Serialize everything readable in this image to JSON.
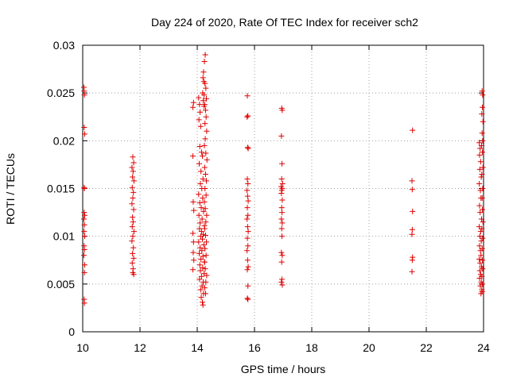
{
  "chart_data": {
    "type": "scatter",
    "title": "Day 224 of 2020, Rate Of TEC Index for receiver sch2",
    "xlabel": "GPS time / hours",
    "ylabel": "ROTI / TECUs",
    "xlim": [
      10,
      24
    ],
    "ylim": [
      0,
      0.03
    ],
    "x_ticks": [
      "10",
      "12",
      "14",
      "16",
      "18",
      "20",
      "22",
      "24"
    ],
    "y_ticks": [
      "0",
      "0.005",
      "0.01",
      "0.015",
      "0.02",
      "0.025",
      "0.03"
    ],
    "grid": true,
    "marker": "+",
    "marker_color": "#e00000",
    "series": [
      {
        "points": [
          [
            10.05,
            0.0252
          ],
          [
            10.06,
            0.0248
          ],
          [
            10.04,
            0.0256
          ],
          [
            10.05,
            0.0214
          ],
          [
            10.07,
            0.0207
          ],
          [
            10.05,
            0.0151
          ],
          [
            10.06,
            0.015
          ],
          [
            10.05,
            0.0125
          ],
          [
            10.07,
            0.0122
          ],
          [
            10.04,
            0.0118
          ],
          [
            10.06,
            0.0112
          ],
          [
            10.05,
            0.0105
          ],
          [
            10.07,
            0.01
          ],
          [
            10.05,
            0.009
          ],
          [
            10.06,
            0.0086
          ],
          [
            10.04,
            0.008
          ],
          [
            10.07,
            0.007
          ],
          [
            10.06,
            0.0062
          ],
          [
            10.05,
            0.0034
          ],
          [
            10.06,
            0.003
          ],
          [
            11.75,
            0.0183
          ],
          [
            11.78,
            0.0177
          ],
          [
            11.72,
            0.0172
          ],
          [
            11.76,
            0.0168
          ],
          [
            11.74,
            0.0162
          ],
          [
            11.79,
            0.0158
          ],
          [
            11.73,
            0.0151
          ],
          [
            11.77,
            0.0146
          ],
          [
            11.75,
            0.014
          ],
          [
            11.72,
            0.0134
          ],
          [
            11.78,
            0.0128
          ],
          [
            11.74,
            0.012
          ],
          [
            11.76,
            0.0115
          ],
          [
            11.73,
            0.011
          ],
          [
            11.79,
            0.0105
          ],
          [
            11.75,
            0.01
          ],
          [
            11.72,
            0.0095
          ],
          [
            11.77,
            0.0088
          ],
          [
            11.74,
            0.0082
          ],
          [
            11.78,
            0.0077
          ],
          [
            11.73,
            0.0072
          ],
          [
            11.76,
            0.0066
          ],
          [
            11.75,
            0.0062
          ],
          [
            11.78,
            0.006
          ],
          [
            13.85,
            0.0235
          ],
          [
            13.87,
            0.024
          ],
          [
            13.85,
            0.0184
          ],
          [
            13.86,
            0.0136
          ],
          [
            13.88,
            0.0127
          ],
          [
            13.85,
            0.0103
          ],
          [
            13.87,
            0.0094
          ],
          [
            13.86,
            0.0083
          ],
          [
            13.88,
            0.0075
          ],
          [
            13.85,
            0.0065
          ],
          [
            14.05,
            0.0245
          ],
          [
            14.08,
            0.0238
          ],
          [
            14.1,
            0.023
          ],
          [
            14.06,
            0.0222
          ],
          [
            14.12,
            0.0215
          ],
          [
            14.09,
            0.0194
          ],
          [
            14.15,
            0.0188
          ],
          [
            14.18,
            0.0184
          ],
          [
            14.07,
            0.0176
          ],
          [
            14.13,
            0.0168
          ],
          [
            14.2,
            0.016
          ],
          [
            14.11,
            0.0155
          ],
          [
            14.16,
            0.015
          ],
          [
            14.05,
            0.0144
          ],
          [
            14.19,
            0.014
          ],
          [
            14.09,
            0.0135
          ],
          [
            14.14,
            0.013
          ],
          [
            14.22,
            0.0126
          ],
          [
            14.06,
            0.0122
          ],
          [
            14.17,
            0.0118
          ],
          [
            14.1,
            0.0114
          ],
          [
            14.25,
            0.0111
          ],
          [
            14.08,
            0.0108
          ],
          [
            14.15,
            0.0105
          ],
          [
            14.21,
            0.0102
          ],
          [
            14.12,
            0.01
          ],
          [
            14.18,
            0.0097
          ],
          [
            14.05,
            0.0094
          ],
          [
            14.23,
            0.0091
          ],
          [
            14.1,
            0.0088
          ],
          [
            14.16,
            0.0085
          ],
          [
            14.07,
            0.0082
          ],
          [
            14.2,
            0.0079
          ],
          [
            14.13,
            0.0076
          ],
          [
            14.26,
            0.0073
          ],
          [
            14.09,
            0.007
          ],
          [
            14.19,
            0.0067
          ],
          [
            14.11,
            0.0064
          ],
          [
            14.24,
            0.0061
          ],
          [
            14.15,
            0.0058
          ],
          [
            14.08,
            0.0055
          ],
          [
            14.21,
            0.0052
          ],
          [
            14.17,
            0.0048
          ],
          [
            14.12,
            0.0044
          ],
          [
            14.22,
            0.004
          ],
          [
            14.14,
            0.0036
          ],
          [
            14.18,
            0.0031
          ],
          [
            14.2,
            0.0028
          ],
          [
            14.25,
            0.0283
          ],
          [
            14.28,
            0.029
          ],
          [
            14.27,
            0.026
          ],
          [
            14.3,
            0.0255
          ],
          [
            14.24,
            0.0248
          ],
          [
            14.32,
            0.0244
          ],
          [
            14.26,
            0.0238
          ],
          [
            14.29,
            0.0232
          ],
          [
            14.31,
            0.0225
          ],
          [
            14.27,
            0.0218
          ],
          [
            14.33,
            0.021
          ],
          [
            14.28,
            0.0202
          ],
          [
            14.25,
            0.0195
          ],
          [
            14.3,
            0.0187
          ],
          [
            14.34,
            0.018
          ],
          [
            14.26,
            0.0172
          ],
          [
            14.29,
            0.0165
          ],
          [
            14.32,
            0.0158
          ],
          [
            14.27,
            0.015
          ],
          [
            14.31,
            0.0143
          ],
          [
            14.25,
            0.0136
          ],
          [
            14.28,
            0.0129
          ],
          [
            14.33,
            0.0122
          ],
          [
            14.3,
            0.0115
          ],
          [
            14.26,
            0.0108
          ],
          [
            14.29,
            0.0101
          ],
          [
            14.32,
            0.0094
          ],
          [
            14.27,
            0.0087
          ],
          [
            14.31,
            0.008
          ],
          [
            14.25,
            0.0073
          ],
          [
            14.28,
            0.0066
          ],
          [
            14.33,
            0.0059
          ],
          [
            14.3,
            0.0052
          ],
          [
            14.26,
            0.0046
          ],
          [
            14.29,
            0.004
          ],
          [
            14.22,
            0.0272
          ],
          [
            14.2,
            0.0266
          ],
          [
            14.23,
            0.0262
          ],
          [
            14.19,
            0.025
          ],
          [
            14.21,
            0.0242
          ],
          [
            14.24,
            0.0236
          ],
          [
            15.75,
            0.0247
          ],
          [
            15.77,
            0.0226
          ],
          [
            15.74,
            0.0225
          ],
          [
            15.76,
            0.0193
          ],
          [
            15.78,
            0.0192
          ],
          [
            15.75,
            0.016
          ],
          [
            15.77,
            0.0155
          ],
          [
            15.74,
            0.0148
          ],
          [
            15.76,
            0.0142
          ],
          [
            15.78,
            0.0137
          ],
          [
            15.75,
            0.013
          ],
          [
            15.77,
            0.0122
          ],
          [
            15.74,
            0.0118
          ],
          [
            15.76,
            0.011
          ],
          [
            15.78,
            0.0105
          ],
          [
            15.75,
            0.0098
          ],
          [
            15.77,
            0.009
          ],
          [
            15.74,
            0.0085
          ],
          [
            15.76,
            0.0075
          ],
          [
            15.78,
            0.0068
          ],
          [
            15.75,
            0.0065
          ],
          [
            15.77,
            0.0048
          ],
          [
            15.75,
            0.0035
          ],
          [
            15.77,
            0.0034
          ],
          [
            16.95,
            0.0234
          ],
          [
            16.97,
            0.0232
          ],
          [
            16.94,
            0.0205
          ],
          [
            16.96,
            0.0176
          ],
          [
            16.95,
            0.016
          ],
          [
            16.98,
            0.0155
          ],
          [
            16.93,
            0.0152
          ],
          [
            16.97,
            0.015
          ],
          [
            16.95,
            0.0148
          ],
          [
            16.94,
            0.0145
          ],
          [
            16.97,
            0.0138
          ],
          [
            16.95,
            0.013
          ],
          [
            16.96,
            0.0125
          ],
          [
            16.94,
            0.0118
          ],
          [
            16.97,
            0.0114
          ],
          [
            16.95,
            0.0108
          ],
          [
            16.96,
            0.01
          ],
          [
            16.94,
            0.0083
          ],
          [
            16.97,
            0.008
          ],
          [
            16.95,
            0.0073
          ],
          [
            16.96,
            0.0055
          ],
          [
            16.94,
            0.0052
          ],
          [
            16.97,
            0.0049
          ],
          [
            21.52,
            0.0211
          ],
          [
            21.5,
            0.0158
          ],
          [
            21.51,
            0.0149
          ],
          [
            21.52,
            0.0126
          ],
          [
            21.51,
            0.0107
          ],
          [
            21.5,
            0.0102
          ],
          [
            21.52,
            0.0078
          ],
          [
            21.51,
            0.0075
          ],
          [
            21.5,
            0.0063
          ],
          [
            23.85,
            0.0198
          ],
          [
            23.88,
            0.0192
          ],
          [
            23.86,
            0.0185
          ],
          [
            23.9,
            0.0178
          ],
          [
            23.87,
            0.017
          ],
          [
            23.92,
            0.0162
          ],
          [
            23.85,
            0.0155
          ],
          [
            23.89,
            0.0148
          ],
          [
            23.91,
            0.014
          ],
          [
            23.86,
            0.0132
          ],
          [
            23.88,
            0.0125
          ],
          [
            23.93,
            0.0118
          ],
          [
            23.85,
            0.011
          ],
          [
            23.9,
            0.0105
          ],
          [
            23.87,
            0.01
          ],
          [
            23.92,
            0.0095
          ],
          [
            23.86,
            0.009
          ],
          [
            23.89,
            0.0085
          ],
          [
            23.91,
            0.008
          ],
          [
            23.85,
            0.0076
          ],
          [
            23.88,
            0.0072
          ],
          [
            23.93,
            0.0068
          ],
          [
            23.87,
            0.0064
          ],
          [
            23.9,
            0.006
          ],
          [
            23.86,
            0.0056
          ],
          [
            23.92,
            0.0052
          ],
          [
            23.89,
            0.0048
          ],
          [
            23.94,
            0.0044
          ],
          [
            23.91,
            0.004
          ],
          [
            23.95,
            0.0042
          ],
          [
            23.96,
            0.005
          ],
          [
            23.94,
            0.0058
          ],
          [
            23.97,
            0.0066
          ],
          [
            23.95,
            0.0252
          ],
          [
            23.97,
            0.0248
          ],
          [
            23.96,
            0.0235
          ],
          [
            23.94,
            0.0228
          ],
          [
            23.98,
            0.022
          ],
          [
            23.95,
            0.0208
          ],
          [
            23.97,
            0.02
          ],
          [
            23.93,
            0.0195
          ],
          [
            23.96,
            0.0188
          ],
          [
            23.98,
            0.0172
          ],
          [
            23.94,
            0.0165
          ],
          [
            23.97,
            0.015
          ],
          [
            23.95,
            0.014
          ],
          [
            23.96,
            0.0128
          ],
          [
            23.98,
            0.0115
          ],
          [
            23.94,
            0.0108
          ],
          [
            23.97,
            0.0098
          ],
          [
            23.95,
            0.0087
          ],
          [
            23.96,
            0.0075
          ]
        ]
      }
    ]
  }
}
